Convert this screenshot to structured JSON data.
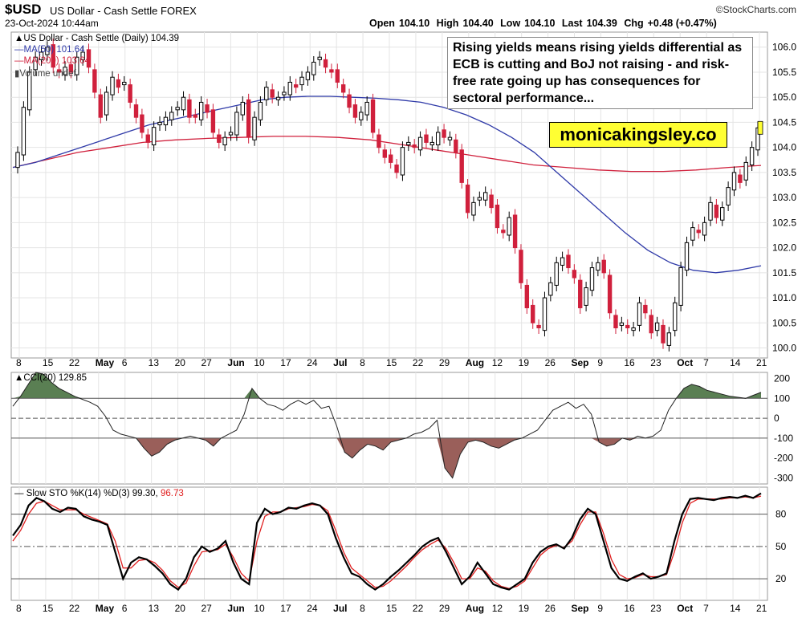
{
  "header": {
    "symbol": "$USD",
    "name": "US Dollar - Cash Settle",
    "exchange": "FOREX",
    "timestamp": "23-Oct-2024 10:44am",
    "copyright": "©StockCharts.com",
    "open_label": "Open",
    "open": "104.10",
    "high_label": "High",
    "high": "104.40",
    "low_label": "Low",
    "low": "104.10",
    "last_label": "Last",
    "last": "104.39",
    "chg_label": "Chg",
    "chg": "+0.48 (+0.47%)"
  },
  "legend": {
    "main": "US Dollar - Cash Settle (Daily) 104.39",
    "ma50": "MA(50) 101.64",
    "ma200": "MA(200) 103.64",
    "volume": "Volume undef"
  },
  "annotation": "Rising yields means rising yields differential as ECB is cutting and BoJ not raising - and risk-free rate going up has consequences for sectoral performance...",
  "brand": "monicakingsley.co",
  "colors": {
    "up": "#000000",
    "down": "#d0203c",
    "ma50": "#2f3aa8",
    "ma200": "#d0203c",
    "cci_fill": "#5a7f53",
    "cci_neg_fill": "#9a5f5a",
    "sto_d": "#e02020"
  },
  "chart_data": [
    {
      "type": "candlestick",
      "title": "US Dollar - Cash Settle (Daily) 104.39",
      "ylim": [
        99.8,
        106.3
      ],
      "yticks": [
        "106.0",
        "105.5",
        "105.0",
        "104.5",
        "104.0",
        "103.5",
        "103.0",
        "102.5",
        "102.0",
        "101.5",
        "101.0",
        "100.5",
        "100.0"
      ],
      "x_tick_labels": [
        "8",
        "15",
        "22",
        "May",
        "6",
        "13",
        "20",
        "27",
        "Jun",
        "10",
        "17",
        "24",
        "Jul",
        "8",
        "15",
        "22",
        "29",
        "Aug",
        "12",
        "19",
        "26",
        "Sep",
        "9",
        "16",
        "23",
        "Oct",
        "7",
        "14",
        "21"
      ],
      "x_tick_bold": [
        "May",
        "Jun",
        "Jul",
        "Aug",
        "Sep",
        "Oct"
      ],
      "close": [
        103.9,
        104.8,
        105.5,
        105.8,
        105.9,
        106.0,
        105.6,
        105.5,
        105.6,
        105.5,
        105.8,
        105.9,
        105.6,
        105.1,
        104.6,
        105.1,
        105.4,
        105.2,
        105.3,
        104.9,
        104.6,
        104.3,
        104.1,
        104.4,
        104.5,
        104.6,
        104.7,
        104.8,
        105.0,
        104.6,
        104.6,
        104.9,
        104.7,
        104.3,
        104.1,
        104.2,
        104.3,
        104.7,
        104.9,
        104.2,
        104.6,
        104.9,
        105.2,
        105.0,
        105.0,
        105.1,
        105.3,
        105.2,
        105.4,
        105.5,
        105.7,
        105.8,
        105.6,
        105.5,
        105.3,
        105.1,
        104.8,
        104.6,
        104.7,
        104.9,
        104.3,
        104.0,
        103.8,
        103.7,
        103.5,
        104.0,
        104.1,
        104.0,
        104.2,
        104.1,
        104.1,
        104.3,
        104.2,
        104.2,
        103.9,
        103.3,
        102.7,
        102.9,
        103.0,
        103.1,
        102.8,
        102.4,
        102.3,
        102.6,
        102.0,
        101.3,
        100.8,
        100.5,
        100.4,
        101.0,
        101.3,
        101.7,
        101.8,
        101.6,
        101.4,
        100.8,
        101.2,
        101.6,
        101.7,
        101.5,
        100.7,
        100.4,
        100.5,
        100.4,
        100.4,
        100.9,
        100.7,
        100.3,
        100.5,
        100.1,
        100.3,
        100.9,
        101.6,
        102.1,
        102.4,
        102.3,
        102.5,
        102.9,
        102.6,
        102.8,
        103.2,
        103.5,
        103.3,
        103.7,
        104.0,
        104.39
      ],
      "ma50": [
        103.6,
        103.7,
        103.85,
        104.0,
        104.15,
        104.3,
        104.45,
        104.55,
        104.65,
        104.75,
        104.85,
        104.95,
        105.0,
        105.02,
        105.02,
        105.0,
        104.98,
        104.95,
        104.9,
        104.8,
        104.65,
        104.45,
        104.2,
        103.9,
        103.5,
        103.1,
        102.7,
        102.3,
        101.95,
        101.7,
        101.55,
        101.5,
        101.55,
        101.64
      ],
      "ma200": [
        103.6,
        103.75,
        103.9,
        104.0,
        104.1,
        104.15,
        104.18,
        104.2,
        104.22,
        104.22,
        104.2,
        104.15,
        104.05,
        103.95,
        103.85,
        103.75,
        103.65,
        103.6,
        103.55,
        103.52,
        103.52,
        103.55,
        103.6,
        103.64
      ],
      "ma_labels": [
        "MA(50) 101.64",
        "MA(200) 103.64"
      ]
    },
    {
      "type": "area",
      "title": "CCI(20) 129.85",
      "ylim": [
        -330,
        230
      ],
      "yticks": [
        "200",
        "100",
        "0",
        "-100",
        "-200",
        "-300"
      ],
      "values": [
        60,
        110,
        170,
        230,
        220,
        180,
        150,
        130,
        110,
        95,
        80,
        60,
        10,
        -60,
        -80,
        -90,
        -100,
        -150,
        -190,
        -170,
        -130,
        -110,
        -100,
        -90,
        -100,
        -110,
        -140,
        -100,
        -80,
        -60,
        20,
        150,
        100,
        70,
        60,
        40,
        70,
        90,
        70,
        90,
        50,
        60,
        -40,
        -170,
        -200,
        -160,
        -130,
        -140,
        -160,
        -120,
        -110,
        -100,
        -80,
        -70,
        -50,
        -10,
        -250,
        -300,
        -180,
        -120,
        -110,
        -120,
        -140,
        -150,
        -130,
        -110,
        -100,
        -80,
        -60,
        -10,
        40,
        60,
        80,
        50,
        70,
        20,
        -120,
        -140,
        -130,
        -100,
        -110,
        -90,
        -100,
        -90,
        -60,
        40,
        100,
        150,
        170,
        160,
        140,
        130,
        120,
        110,
        105,
        100,
        115,
        129.85
      ],
      "lines": [
        100,
        0,
        -100
      ]
    },
    {
      "type": "line",
      "title": "Slow STO %K(14) %D(3) 99.30, 96.73",
      "ylim": [
        0,
        105
      ],
      "yticks": [
        "80",
        "50",
        "20"
      ],
      "series": [
        {
          "name": "%K(14) 99.30",
          "values": [
            60,
            70,
            88,
            95,
            92,
            85,
            82,
            86,
            85,
            78,
            75,
            73,
            70,
            45,
            20,
            35,
            40,
            38,
            32,
            25,
            15,
            10,
            20,
            40,
            50,
            45,
            48,
            55,
            35,
            20,
            15,
            72,
            85,
            80,
            82,
            86,
            85,
            88,
            90,
            88,
            80,
            58,
            40,
            25,
            22,
            15,
            10,
            15,
            22,
            28,
            35,
            42,
            50,
            55,
            58,
            45,
            30,
            15,
            22,
            35,
            25,
            15,
            12,
            10,
            15,
            20,
            35,
            45,
            50,
            52,
            48,
            58,
            75,
            85,
            80,
            55,
            30,
            20,
            18,
            22,
            25,
            20,
            22,
            25,
            55,
            80,
            94,
            95,
            94,
            93,
            95,
            96,
            95,
            97,
            95,
            99.3
          ]
        },
        {
          "name": "%D(3) 96.73",
          "values": [
            55,
            65,
            80,
            90,
            92,
            88,
            84,
            84,
            84,
            80,
            77,
            74,
            71,
            55,
            30,
            30,
            37,
            38,
            35,
            28,
            18,
            12,
            16,
            32,
            45,
            46,
            47,
            52,
            40,
            25,
            18,
            55,
            78,
            82,
            82,
            85,
            86,
            87,
            89,
            88,
            83,
            65,
            45,
            30,
            24,
            18,
            12,
            13,
            18,
            25,
            32,
            40,
            47,
            52,
            56,
            48,
            35,
            20,
            20,
            30,
            27,
            18,
            13,
            11,
            13,
            18,
            30,
            42,
            48,
            51,
            49,
            55,
            70,
            82,
            82,
            62,
            38,
            24,
            20,
            21,
            24,
            22,
            22,
            24,
            45,
            72,
            90,
            94,
            94,
            94,
            94,
            95,
            95,
            96,
            95,
            96.73
          ]
        }
      ],
      "lines": [
        80,
        50,
        20
      ]
    }
  ]
}
